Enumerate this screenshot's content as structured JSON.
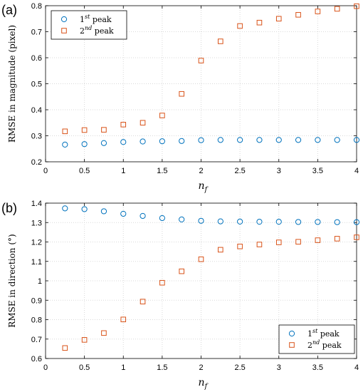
{
  "colors": {
    "first_peak": "#0072BD",
    "second_peak": "#D95319",
    "grid": "#d9d9d9",
    "axis": "#000000"
  },
  "chart_data": [
    {
      "panel": "(a)",
      "type": "scatter",
      "xlabel": "n",
      "xlabel_sub": "f",
      "ylabel": "RMSE in magnitude (pixel)",
      "xlim": [
        0,
        4
      ],
      "ylim": [
        0.2,
        0.8
      ],
      "xticks": [
        0,
        0.5,
        1,
        1.5,
        2,
        2.5,
        3,
        3.5,
        4
      ],
      "yticks": [
        0.2,
        0.3,
        0.4,
        0.5,
        0.6,
        0.7,
        0.8
      ],
      "xtick_labels": [
        "0",
        "0.5",
        "1",
        "1.5",
        "2",
        "2.5",
        "3",
        "3.5",
        "4"
      ],
      "ytick_labels": [
        "0.2",
        "0.3",
        "0.4",
        "0.5",
        "0.6",
        "0.7",
        "0.8"
      ],
      "grid": true,
      "legend_position": "top-left",
      "x": [
        0.25,
        0.5,
        0.75,
        1,
        1.25,
        1.5,
        1.75,
        2,
        2.25,
        2.5,
        2.75,
        3,
        3.25,
        3.5,
        3.75,
        4
      ],
      "series": [
        {
          "name": "1",
          "name_sup": "st",
          "name_suffix": " peak",
          "marker": "circle",
          "color": "#0072BD",
          "values": [
            0.266,
            0.268,
            0.272,
            0.276,
            0.278,
            0.279,
            0.28,
            0.283,
            0.284,
            0.284,
            0.284,
            0.284,
            0.284,
            0.284,
            0.284,
            0.284
          ]
        },
        {
          "name": "2",
          "name_sup": "nd",
          "name_suffix": " peak",
          "marker": "square",
          "color": "#D95319",
          "values": [
            0.317,
            0.322,
            0.323,
            0.343,
            0.35,
            0.378,
            0.461,
            0.589,
            0.663,
            0.722,
            0.735,
            0.75,
            0.765,
            0.778,
            0.788,
            0.798
          ]
        }
      ]
    },
    {
      "panel": "(b)",
      "type": "scatter",
      "xlabel": "n",
      "xlabel_sub": "f",
      "ylabel": "RMSE in direction (°)",
      "xlim": [
        0,
        4
      ],
      "ylim": [
        0.6,
        1.4
      ],
      "xticks": [
        0,
        0.5,
        1,
        1.5,
        2,
        2.5,
        3,
        3.5,
        4
      ],
      "yticks": [
        0.6,
        0.7,
        0.8,
        0.9,
        1.0,
        1.1,
        1.2,
        1.3,
        1.4
      ],
      "xtick_labels": [
        "0",
        "0.5",
        "1",
        "1.5",
        "2",
        "2.5",
        "3",
        "3.5",
        "4"
      ],
      "ytick_labels": [
        "0.6",
        "0.7",
        "0.8",
        "0.9",
        "1",
        "1.1",
        "1.2",
        "1.3",
        "1.4"
      ],
      "grid": true,
      "legend_position": "bottom-right",
      "x": [
        0.25,
        0.5,
        0.75,
        1,
        1.25,
        1.5,
        1.75,
        2,
        2.25,
        2.5,
        2.75,
        3,
        3.25,
        3.5,
        3.75,
        4
      ],
      "series": [
        {
          "name": "1",
          "name_sup": "st",
          "name_suffix": " peak",
          "marker": "circle",
          "color": "#0072BD",
          "values": [
            1.373,
            1.369,
            1.358,
            1.345,
            1.334,
            1.323,
            1.316,
            1.309,
            1.306,
            1.305,
            1.304,
            1.304,
            1.303,
            1.303,
            1.302,
            1.302
          ]
        },
        {
          "name": "2",
          "name_sup": "nd",
          "name_suffix": " peak",
          "marker": "square",
          "color": "#D95319",
          "values": [
            0.654,
            0.696,
            0.731,
            0.801,
            0.893,
            0.99,
            1.049,
            1.111,
            1.16,
            1.177,
            1.187,
            1.198,
            1.201,
            1.209,
            1.217,
            1.224
          ]
        }
      ]
    }
  ]
}
